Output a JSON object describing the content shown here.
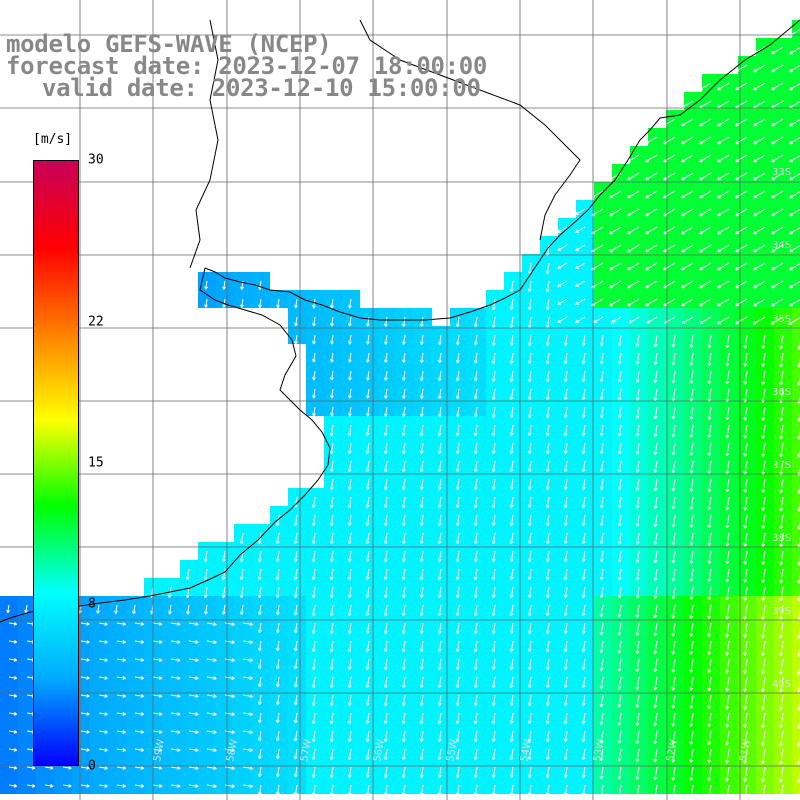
{
  "header": {
    "model_line": "modelo GEFS-WAVE (NCEP)",
    "forecast_line": "forecast date: 2023-12-07 18:00:00",
    "valid_line": "valid date: 2023-12-10 15:00:00"
  },
  "legend": {
    "unit": "[m/s]",
    "ticks": [
      "30",
      "22",
      "15",
      "8",
      "0"
    ],
    "min": 0,
    "max": 30,
    "colors": [
      "#0000ff",
      "#00aaff",
      "#00ffff",
      "#00ff00",
      "#ffff00",
      "#ff8000",
      "#ff0000",
      "#c8005a"
    ]
  },
  "map": {
    "background_land": "#ffffff",
    "grid_color": "#666666",
    "coast_color": "#000000",
    "arrow_color": "#ffffff",
    "lat_labels": [
      "33S",
      "34S",
      "35S",
      "36S",
      "37S",
      "38S",
      "39S",
      "40S"
    ],
    "lon_labels": [
      "59W",
      "58W",
      "57W",
      "56W",
      "55W",
      "54W",
      "53W",
      "52W",
      "51W"
    ]
  }
}
